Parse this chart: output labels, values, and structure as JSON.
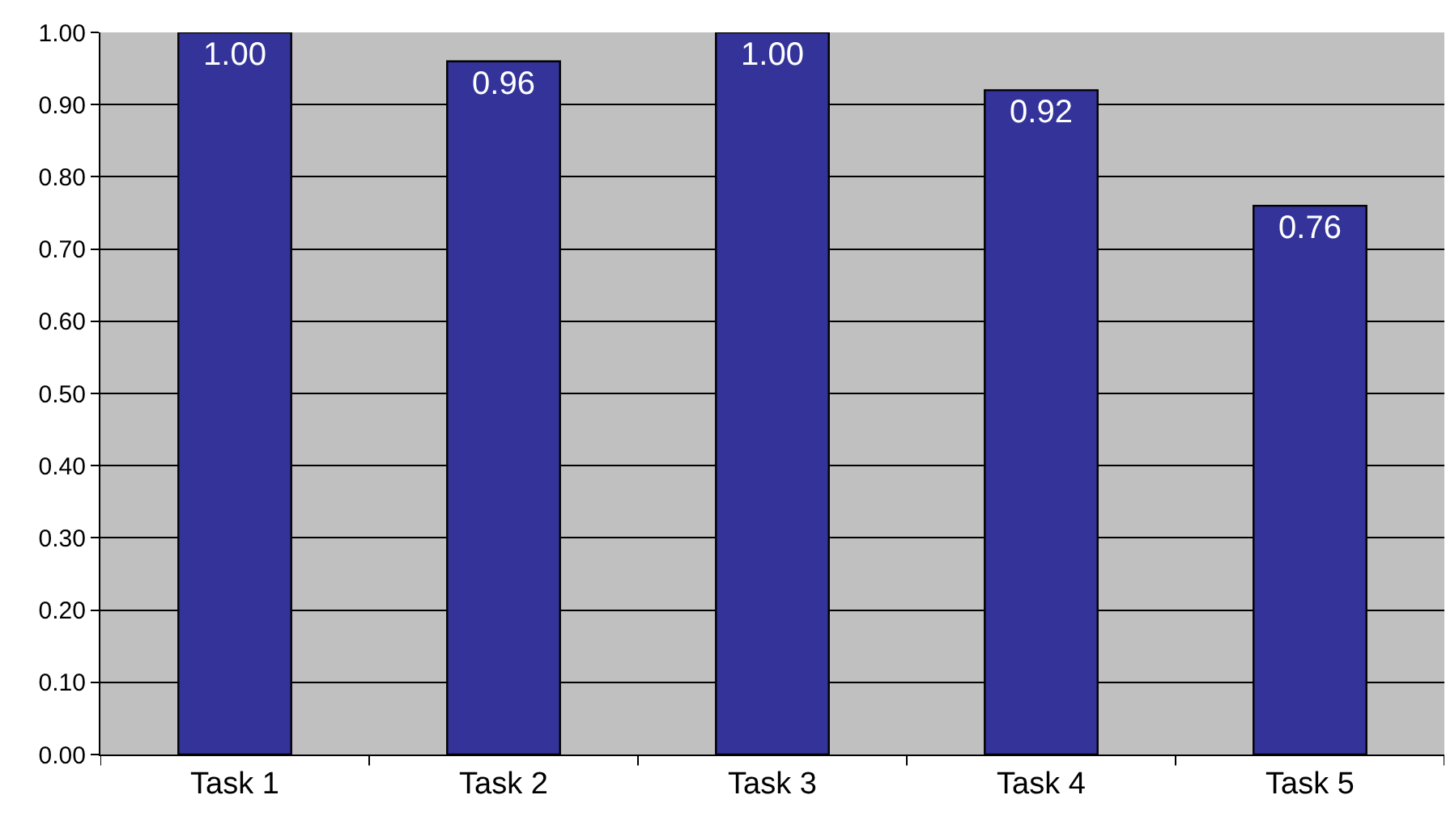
{
  "chart_data": {
    "type": "bar",
    "categories": [
      "Task 1",
      "Task 2",
      "Task 3",
      "Task 4",
      "Task 5"
    ],
    "values": [
      1.0,
      0.96,
      1.0,
      0.92,
      0.76
    ],
    "value_labels": [
      "1.00",
      "0.96",
      "1.00",
      "0.92",
      "0.76"
    ],
    "color": "#333399",
    "ylim": [
      0,
      1
    ],
    "yticks": [
      {
        "value": 0,
        "label": "0.00"
      },
      {
        "value": 0.1,
        "label": "0.10"
      },
      {
        "value": 0.2,
        "label": "0.20"
      },
      {
        "value": 0.3,
        "label": "0.30"
      },
      {
        "value": 0.4,
        "label": "0.40"
      },
      {
        "value": 0.5,
        "label": "0.50"
      },
      {
        "value": 0.6,
        "label": "0.60"
      },
      {
        "value": 0.7,
        "label": "0.70"
      },
      {
        "value": 0.8,
        "label": "0.80"
      },
      {
        "value": 0.9,
        "label": "0.90"
      },
      {
        "value": 1,
        "label": "1.00"
      }
    ],
    "grid": "y"
  }
}
